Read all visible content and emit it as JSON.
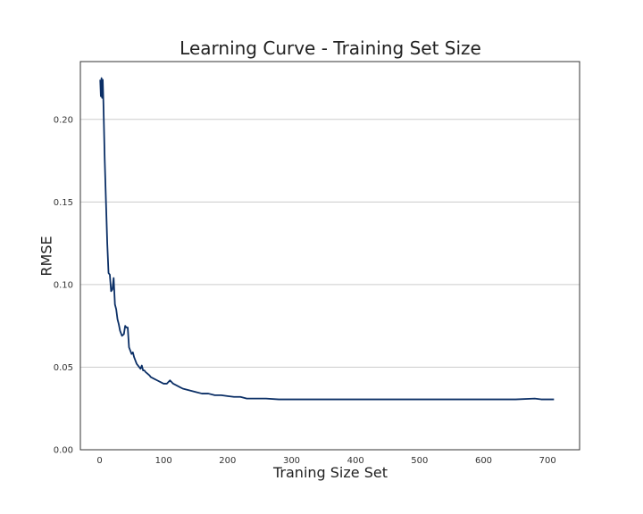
{
  "chart_data": {
    "type": "line",
    "title": "Learning Curve - Training Set Size",
    "xlabel": "Traning Size Set",
    "ylabel": "RMSE",
    "xlim": [
      -30,
      750
    ],
    "ylim": [
      0,
      0.235
    ],
    "xticks": [
      0,
      100,
      200,
      300,
      400,
      500,
      600,
      700
    ],
    "xtick_labels": [
      "0",
      "100",
      "200",
      "300",
      "400",
      "500",
      "600",
      "700"
    ],
    "yticks": [
      0.0,
      0.05,
      0.1,
      0.15,
      0.2
    ],
    "ytick_labels": [
      "0.00",
      "0.05",
      "0.10",
      "0.15",
      "0.20"
    ],
    "grid": "horizontal",
    "line_color": "#0b2f66",
    "grid_color": "#cccccc",
    "series": [
      {
        "x": [
          1,
          2,
          3,
          4,
          5,
          6,
          8,
          10,
          12,
          14,
          16,
          18,
          20,
          22,
          24,
          26,
          28,
          30,
          32,
          35,
          38,
          40,
          42,
          44,
          46,
          48,
          50,
          52,
          54,
          56,
          58,
          60,
          62,
          64,
          66,
          68,
          70,
          72,
          75,
          78,
          80,
          85,
          90,
          95,
          100,
          105,
          110,
          115,
          120,
          125,
          130,
          140,
          150,
          160,
          170,
          180,
          190,
          200,
          210,
          220,
          230,
          240,
          250,
          260,
          280,
          300,
          350,
          400,
          450,
          500,
          550,
          600,
          650,
          680,
          690,
          700,
          710
        ],
        "values": [
          0.224,
          0.214,
          0.225,
          0.213,
          0.224,
          0.21,
          0.176,
          0.15,
          0.125,
          0.107,
          0.106,
          0.096,
          0.097,
          0.104,
          0.088,
          0.085,
          0.079,
          0.076,
          0.072,
          0.069,
          0.07,
          0.075,
          0.074,
          0.074,
          0.062,
          0.06,
          0.058,
          0.059,
          0.056,
          0.054,
          0.052,
          0.051,
          0.05,
          0.049,
          0.051,
          0.048,
          0.048,
          0.047,
          0.046,
          0.045,
          0.044,
          0.043,
          0.042,
          0.041,
          0.04,
          0.04,
          0.042,
          0.04,
          0.039,
          0.038,
          0.037,
          0.036,
          0.035,
          0.034,
          0.034,
          0.033,
          0.033,
          0.0325,
          0.032,
          0.032,
          0.031,
          0.031,
          0.031,
          0.031,
          0.0305,
          0.0305,
          0.0305,
          0.0305,
          0.0305,
          0.0305,
          0.0305,
          0.0305,
          0.0305,
          0.031,
          0.0305,
          0.0305,
          0.0305
        ]
      }
    ]
  }
}
